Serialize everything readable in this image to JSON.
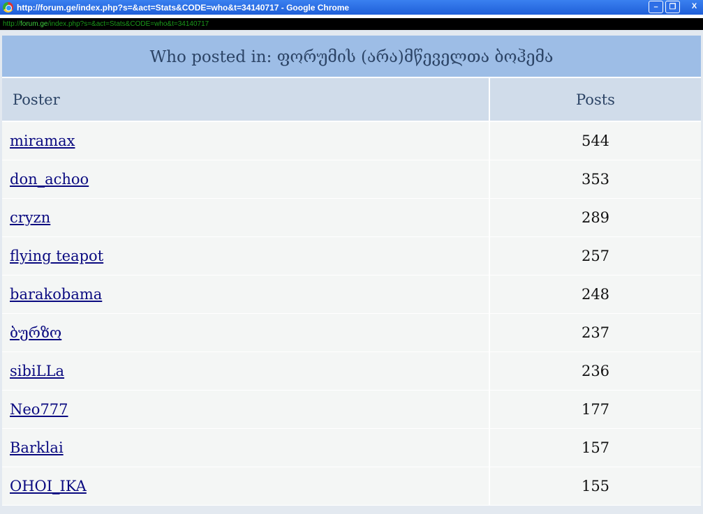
{
  "window": {
    "title": "http://forum.ge/index.php?s=&act=Stats&CODE=who&t=34140717 - Google Chrome",
    "address_prefix": "http://",
    "address_domain": "forum.ge",
    "address_path": "/index.php?s=&act=Stats&CODE=who&t=34140717",
    "minimize": "–",
    "restore": "❐",
    "close": "X"
  },
  "table": {
    "title": "Who posted in: ფორუმის (არა)მწეველთა ბოჰემა",
    "headers": {
      "poster": "Poster",
      "posts": "Posts"
    },
    "rows": [
      {
        "poster": "miramax",
        "posts": "544"
      },
      {
        "poster": "don_achoo",
        "posts": "353"
      },
      {
        "poster": "cryzn",
        "posts": "289"
      },
      {
        "poster": "flying teapot",
        "posts": "257"
      },
      {
        "poster": "barakobama",
        "posts": "248"
      },
      {
        "poster": "ბურზო",
        "posts": "237"
      },
      {
        "poster": "sibiLLa",
        "posts": "236"
      },
      {
        "poster": "Neo777",
        "posts": "177"
      },
      {
        "poster": "Barklai",
        "posts": "157"
      },
      {
        "poster": "OHOI_IKA",
        "posts": "155"
      }
    ]
  }
}
